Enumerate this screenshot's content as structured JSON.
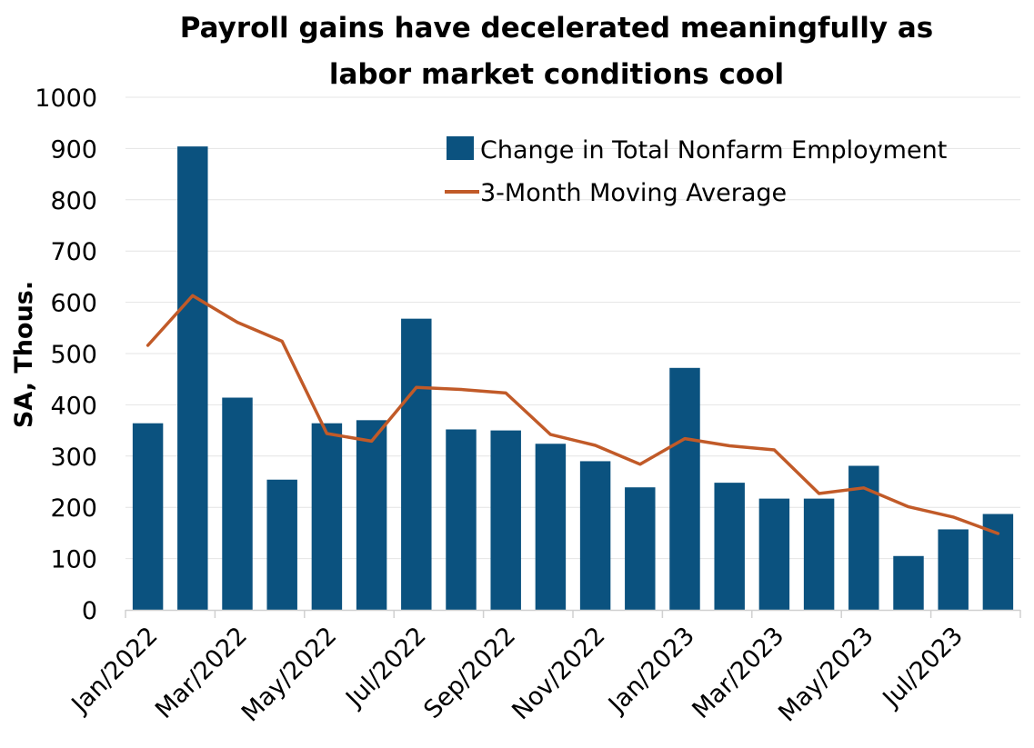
{
  "chart_data": {
    "type": "bar+line",
    "title_lines": [
      "Payroll gains have decelerated meaningfully as",
      "labor market conditions cool"
    ],
    "xlabel": "",
    "ylabel": "SA, Thous.",
    "ylim": [
      0,
      1000
    ],
    "yticks": [
      0,
      100,
      200,
      300,
      400,
      500,
      600,
      700,
      800,
      900,
      1000
    ],
    "grid": true,
    "legend_position": "top-right",
    "categories": [
      "Jan/2022",
      "Feb/2022",
      "Mar/2022",
      "Apr/2022",
      "May/2022",
      "Jun/2022",
      "Jul/2022",
      "Aug/2022",
      "Sep/2022",
      "Oct/2022",
      "Nov/2022",
      "Dec/2022",
      "Jan/2023",
      "Feb/2023",
      "Mar/2023",
      "Apr/2023",
      "May/2023",
      "Jun/2023",
      "Jul/2023",
      "Aug/2023"
    ],
    "x_tick_labels": [
      "Jan/2022",
      "Mar/2022",
      "May/2022",
      "Jul/2022",
      "Sep/2022",
      "Nov/2022",
      "Jan/2023",
      "Mar/2023",
      "May/2023",
      "Jul/2023"
    ],
    "series": [
      {
        "name": "Change in Total Nonfarm Employment",
        "type": "bar",
        "color": "#0b527f",
        "values": [
          364,
          904,
          414,
          254,
          364,
          370,
          568,
          352,
          350,
          324,
          290,
          239,
          472,
          248,
          217,
          217,
          281,
          105,
          157,
          187
        ]
      },
      {
        "name": "3-Month Moving Average",
        "type": "line",
        "color": "#c15a28",
        "values": [
          516,
          613,
          561,
          524,
          344,
          329,
          434,
          430,
          423,
          342,
          321,
          284,
          334,
          320,
          312,
          227,
          238,
          201,
          181,
          149
        ]
      }
    ]
  }
}
